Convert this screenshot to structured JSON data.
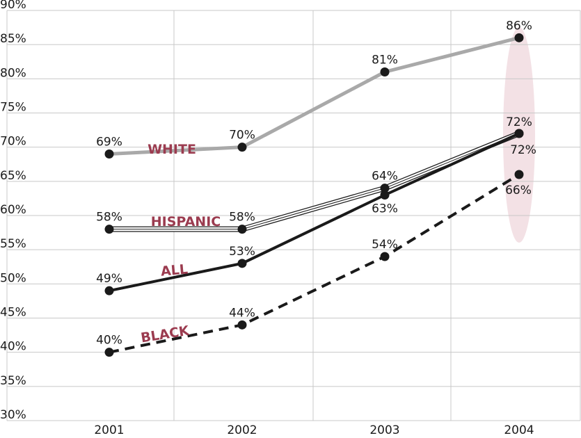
{
  "chart_data": {
    "type": "line",
    "x": [
      "2001",
      "2002",
      "2003",
      "2004"
    ],
    "ylim": [
      30,
      90
    ],
    "yticks": [
      30,
      35,
      40,
      45,
      50,
      55,
      60,
      65,
      70,
      75,
      80,
      85,
      90
    ],
    "ytick_labels": [
      "30%",
      "35%",
      "40%",
      "45%",
      "50%",
      "55%",
      "60%",
      "65%",
      "70%",
      "75%",
      "80%",
      "85%",
      "90%"
    ],
    "grid": true,
    "series": [
      {
        "name": "WHITE",
        "values": [
          69,
          70,
          81,
          86
        ],
        "labels": [
          "69%",
          "70%",
          "81%",
          "86%"
        ],
        "style": "solid-thick",
        "color": "#a9a9a9"
      },
      {
        "name": "HISPANIC",
        "values": [
          58,
          58,
          64,
          72
        ],
        "labels": [
          "58%",
          "58%",
          "64%",
          "72%"
        ],
        "style": "triple-thin",
        "color": "#1a1a1a"
      },
      {
        "name": "ALL",
        "values": [
          49,
          53,
          63,
          72
        ],
        "labels": [
          "49%",
          "53%",
          "63%",
          "72%"
        ],
        "style": "solid",
        "color": "#1a1a1a"
      },
      {
        "name": "BLACK",
        "values": [
          40,
          44,
          54,
          66
        ],
        "labels": [
          "40%",
          "44%",
          "54%",
          "66%"
        ],
        "style": "dashed",
        "color": "#1a1a1a"
      }
    ],
    "series_label_color": "#9b3b4f",
    "highlight": {
      "x": "2004",
      "color": "#f3e1e5"
    }
  }
}
